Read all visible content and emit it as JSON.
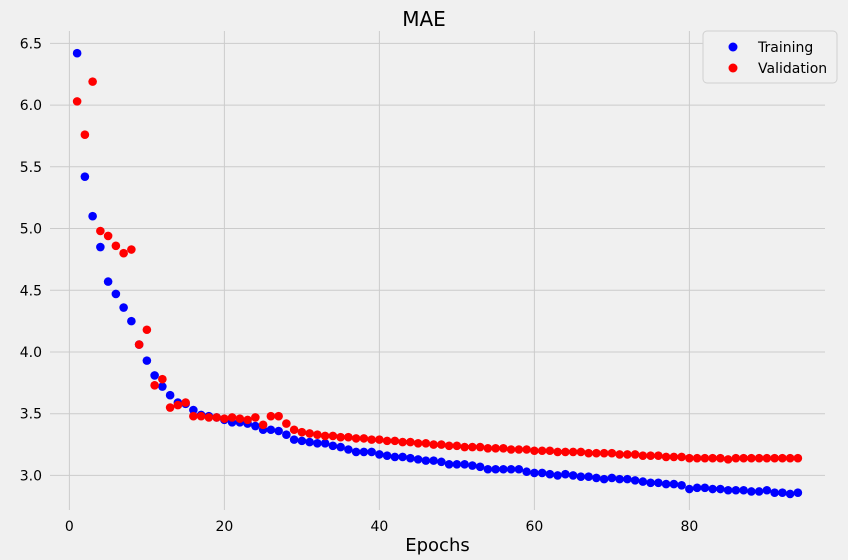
{
  "chart_data": {
    "type": "scatter",
    "title": "MAE",
    "xlabel": "Epochs",
    "ylabel": "",
    "xlim": [
      -2.5,
      97.5
    ],
    "ylim": [
      2.72,
      6.6
    ],
    "xticks": [
      0,
      20,
      40,
      60,
      80
    ],
    "yticks": [
      3.0,
      3.5,
      4.0,
      4.5,
      5.0,
      5.5,
      6.0,
      6.5
    ],
    "xtick_labels": [
      "0",
      "20",
      "40",
      "60",
      "80"
    ],
    "ytick_labels": [
      "3.0",
      "3.5",
      "4.0",
      "4.5",
      "5.0",
      "5.5",
      "6.0",
      "6.5"
    ],
    "grid": true,
    "legend_position": "top-right",
    "series": [
      {
        "name": "Training",
        "color": "#0000ff",
        "x": [
          1,
          2,
          3,
          4,
          5,
          6,
          7,
          8,
          9,
          10,
          11,
          12,
          13,
          14,
          15,
          16,
          17,
          18,
          19,
          20,
          21,
          22,
          23,
          24,
          25,
          26,
          27,
          28,
          29,
          30,
          31,
          32,
          33,
          34,
          35,
          36,
          37,
          38,
          39,
          40,
          41,
          42,
          43,
          44,
          45,
          46,
          47,
          48,
          49,
          50,
          51,
          52,
          53,
          54,
          55,
          56,
          57,
          58,
          59,
          60,
          61,
          62,
          63,
          64,
          65,
          66,
          67,
          68,
          69,
          70,
          71,
          72,
          73,
          74,
          75,
          76,
          77,
          78,
          79,
          80,
          81,
          82,
          83,
          84,
          85,
          86,
          87,
          88,
          89,
          90,
          91,
          92,
          93,
          94
        ],
        "y": [
          6.42,
          5.42,
          5.1,
          4.85,
          4.57,
          4.47,
          4.36,
          4.25,
          4.06,
          3.93,
          3.81,
          3.72,
          3.65,
          3.59,
          3.58,
          3.53,
          3.49,
          3.48,
          3.47,
          3.45,
          3.43,
          3.43,
          3.42,
          3.4,
          3.37,
          3.37,
          3.36,
          3.33,
          3.29,
          3.28,
          3.27,
          3.26,
          3.26,
          3.24,
          3.23,
          3.21,
          3.19,
          3.19,
          3.19,
          3.17,
          3.16,
          3.15,
          3.15,
          3.14,
          3.13,
          3.12,
          3.12,
          3.11,
          3.09,
          3.09,
          3.09,
          3.08,
          3.07,
          3.05,
          3.05,
          3.05,
          3.05,
          3.05,
          3.03,
          3.02,
          3.02,
          3.01,
          3.0,
          3.01,
          3.0,
          2.99,
          2.99,
          2.98,
          2.97,
          2.98,
          2.97,
          2.97,
          2.96,
          2.95,
          2.94,
          2.94,
          2.93,
          2.93,
          2.92,
          2.89,
          2.9,
          2.9,
          2.89,
          2.89,
          2.88,
          2.88,
          2.88,
          2.87,
          2.87,
          2.88,
          2.86,
          2.86,
          2.85,
          2.86
        ]
      },
      {
        "name": "Validation",
        "color": "#ff0000",
        "x": [
          1,
          2,
          3,
          4,
          5,
          6,
          7,
          8,
          9,
          10,
          11,
          12,
          13,
          14,
          15,
          16,
          17,
          18,
          19,
          20,
          21,
          22,
          23,
          24,
          25,
          26,
          27,
          28,
          29,
          30,
          31,
          32,
          33,
          34,
          35,
          36,
          37,
          38,
          39,
          40,
          41,
          42,
          43,
          44,
          45,
          46,
          47,
          48,
          49,
          50,
          51,
          52,
          53,
          54,
          55,
          56,
          57,
          58,
          59,
          60,
          61,
          62,
          63,
          64,
          65,
          66,
          67,
          68,
          69,
          70,
          71,
          72,
          73,
          74,
          75,
          76,
          77,
          78,
          79,
          80,
          81,
          82,
          83,
          84,
          85,
          86,
          87,
          88,
          89,
          90,
          91,
          92,
          93,
          94
        ],
        "y": [
          6.03,
          5.76,
          6.19,
          4.98,
          4.94,
          4.86,
          4.8,
          4.83,
          4.06,
          4.18,
          3.73,
          3.78,
          3.55,
          3.57,
          3.59,
          3.48,
          3.48,
          3.47,
          3.47,
          3.46,
          3.47,
          3.46,
          3.45,
          3.47,
          3.41,
          3.48,
          3.48,
          3.42,
          3.37,
          3.35,
          3.34,
          3.33,
          3.32,
          3.32,
          3.31,
          3.31,
          3.3,
          3.3,
          3.29,
          3.29,
          3.28,
          3.28,
          3.27,
          3.27,
          3.26,
          3.26,
          3.25,
          3.25,
          3.24,
          3.24,
          3.23,
          3.23,
          3.23,
          3.22,
          3.22,
          3.22,
          3.21,
          3.21,
          3.21,
          3.2,
          3.2,
          3.2,
          3.19,
          3.19,
          3.19,
          3.19,
          3.18,
          3.18,
          3.18,
          3.18,
          3.17,
          3.17,
          3.17,
          3.16,
          3.16,
          3.16,
          3.15,
          3.15,
          3.15,
          3.14,
          3.14,
          3.14,
          3.14,
          3.14,
          3.13,
          3.14,
          3.14,
          3.14,
          3.14,
          3.14,
          3.14,
          3.14,
          3.14,
          3.14
        ]
      }
    ]
  }
}
